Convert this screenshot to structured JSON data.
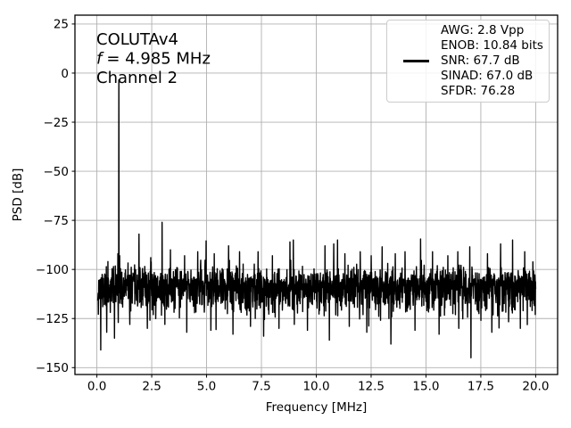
{
  "chart_data": {
    "type": "line",
    "annotation": {
      "line1": "COLUTAv4",
      "freq_var": "f",
      "freq_rest": "= 4.985 MHz",
      "line3": "Channel 2"
    },
    "xlabel": "Frequency [MHz]",
    "ylabel": "PSD [dB]",
    "xlim": [
      -1,
      21
    ],
    "ylim": [
      -153.5,
      29.5
    ],
    "x_ticks": [
      0,
      2.5,
      5,
      7.5,
      10,
      12.5,
      15,
      17.5,
      20
    ],
    "x_tick_labels": [
      "0.0",
      "2.5",
      "5.0",
      "7.5",
      "10.0",
      "12.5",
      "15.0",
      "17.5",
      "20.0"
    ],
    "y_ticks": [
      25,
      0,
      -25,
      -50,
      -75,
      -100,
      -125,
      -150
    ],
    "y_tick_labels": [
      "25",
      "0",
      "−25",
      "−50",
      "−75",
      "−100",
      "−125",
      "−150"
    ],
    "grid": true,
    "legend_position": "upper right",
    "colors": {
      "line": "#000000",
      "grid": "#b0b0b0",
      "background": "#ffffff",
      "legend_border": "#cccccc"
    },
    "legend": {
      "entries": [
        "AWG: 2.8 Vpp",
        "ENOB: 10.84 bits",
        "SNR: 67.7 dB",
        "SINAD: 67.0 dB",
        "SFDR: 76.28"
      ],
      "handle_entry": "SNR: 67.7 dB"
    },
    "signal": {
      "fundamental": {
        "freq_mhz": 1.0,
        "peak_db": -3.5
      },
      "noise_floor_db": -108.5,
      "noise_sigma_up_db": 4.4,
      "noise_sigma_down_db": 6.5,
      "freq_start_mhz": 0.04,
      "freq_end_mhz": 20.0,
      "n_points": 2200,
      "seed": 11,
      "spurs": [
        [
          0.5,
          -96
        ],
        [
          0.96,
          -92
        ],
        [
          1.04,
          -93
        ],
        [
          1.92,
          -82
        ],
        [
          2.45,
          -94
        ],
        [
          2.97,
          -76
        ],
        [
          3.35,
          -90
        ],
        [
          4.0,
          -93
        ],
        [
          4.6,
          -91
        ],
        [
          4.98,
          -85.5
        ],
        [
          5.35,
          -92
        ],
        [
          6.0,
          -88
        ],
        [
          6.5,
          -91
        ],
        [
          7.0,
          -86.5
        ],
        [
          7.35,
          -91
        ],
        [
          8.0,
          -93
        ],
        [
          8.8,
          -86
        ],
        [
          8.95,
          -85
        ],
        [
          9.6,
          -92
        ],
        [
          10.4,
          -88
        ],
        [
          10.8,
          -87
        ],
        [
          10.97,
          -85
        ],
        [
          11.3,
          -92
        ],
        [
          12.0,
          -91
        ],
        [
          12.5,
          -93
        ],
        [
          13.0,
          -88.5
        ],
        [
          13.6,
          -92
        ],
        [
          14.05,
          -91
        ],
        [
          14.75,
          -84.5
        ],
        [
          15.3,
          -91
        ],
        [
          16.0,
          -93
        ],
        [
          16.45,
          -91
        ],
        [
          17.0,
          -88.5
        ],
        [
          17.8,
          -92
        ],
        [
          18.4,
          -87
        ],
        [
          18.95,
          -85
        ],
        [
          19.5,
          -91
        ]
      ],
      "dips": [
        [
          0.18,
          -141
        ],
        [
          0.45,
          -132
        ],
        [
          0.8,
          -135
        ],
        [
          1.5,
          -128
        ],
        [
          2.3,
          -130
        ],
        [
          3.1,
          -128
        ],
        [
          4.1,
          -132
        ],
        [
          5.2,
          -131
        ],
        [
          6.2,
          -133
        ],
        [
          7.0,
          -129
        ],
        [
          7.6,
          -134
        ],
        [
          8.3,
          -130
        ],
        [
          9.0,
          -128
        ],
        [
          9.6,
          -131
        ],
        [
          10.6,
          -136
        ],
        [
          11.5,
          -129
        ],
        [
          12.3,
          -132
        ],
        [
          13.4,
          -138
        ],
        [
          14.5,
          -131
        ],
        [
          15.6,
          -133
        ],
        [
          16.5,
          -130
        ],
        [
          17.05,
          -145
        ],
        [
          18.0,
          -132
        ],
        [
          19.3,
          -130
        ]
      ]
    }
  }
}
